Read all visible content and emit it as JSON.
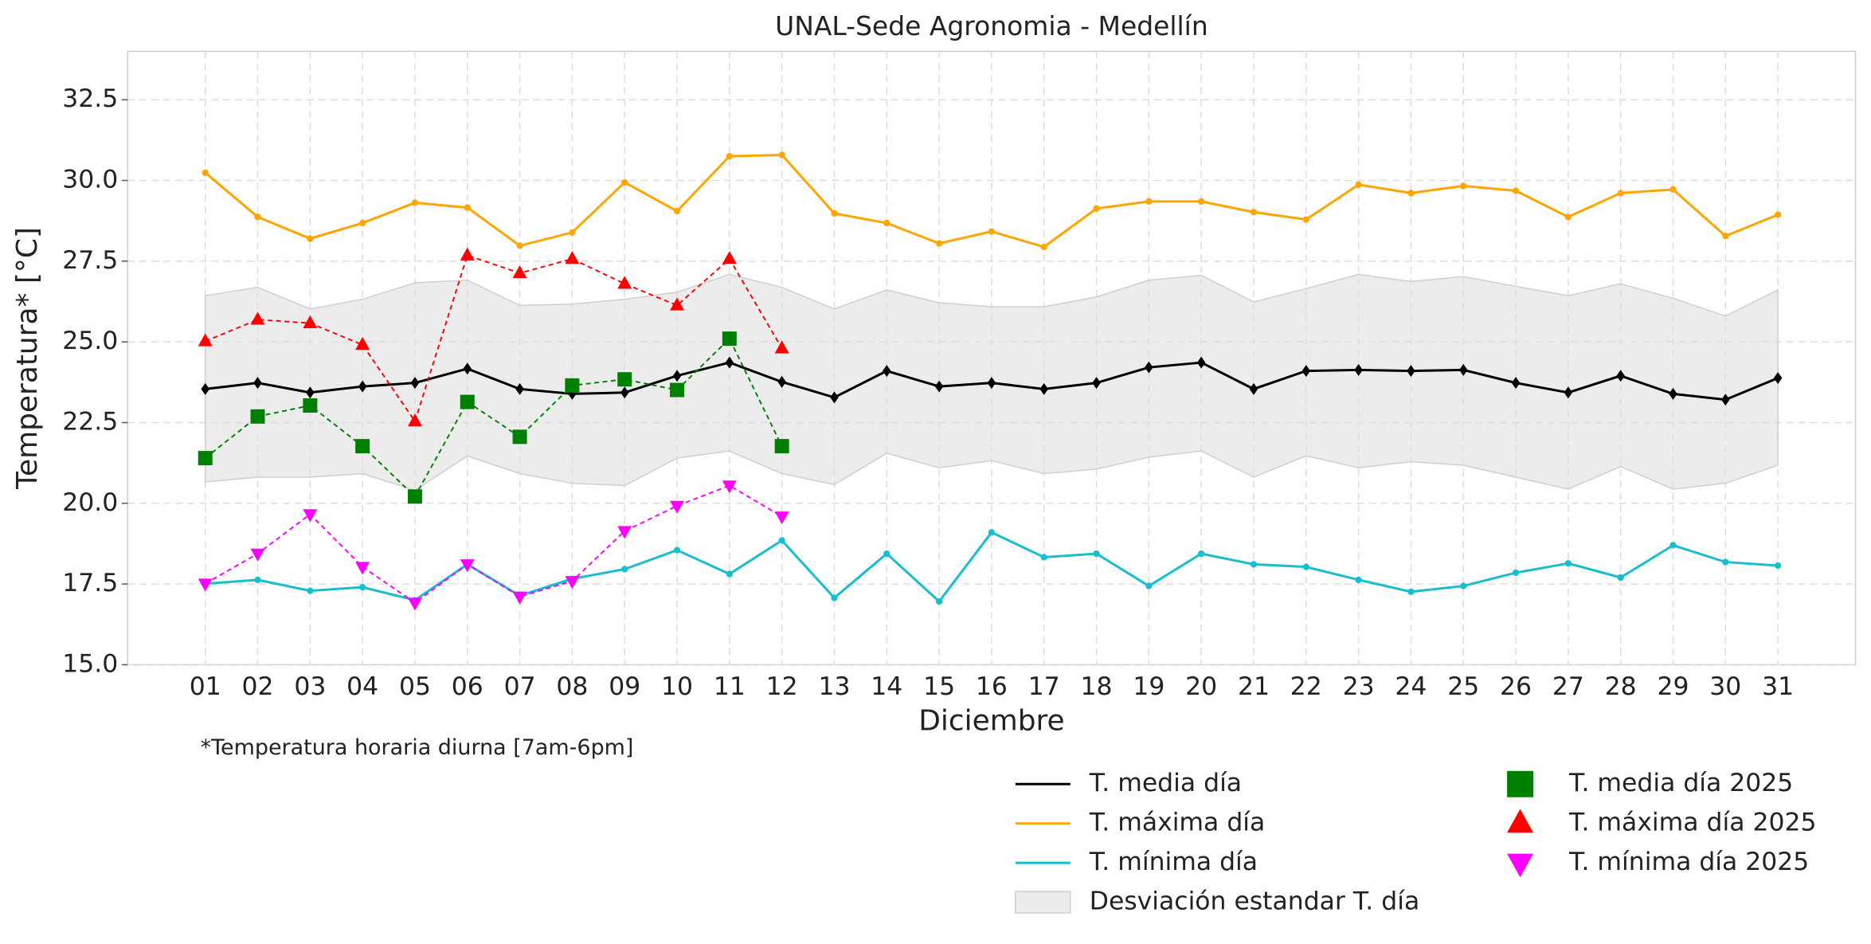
{
  "chart_data": {
    "type": "line",
    "title": "UNAL-Sede Agronomia - Medellín",
    "x_label": "Diciembre",
    "y_label": "Temperatura* [°C]",
    "note": "*Temperatura horaria diurna [7am-6pm]",
    "categories": [
      "01",
      "02",
      "03",
      "04",
      "05",
      "06",
      "07",
      "08",
      "09",
      "10",
      "11",
      "12",
      "13",
      "14",
      "15",
      "16",
      "17",
      "18",
      "19",
      "20",
      "21",
      "22",
      "23",
      "24",
      "25",
      "26",
      "27",
      "28",
      "29",
      "30",
      "31"
    ],
    "ylim": [
      15,
      34
    ],
    "yticks": [
      {
        "value": 15,
        "label": "15.0"
      },
      {
        "value": 17.5,
        "label": "17.5"
      },
      {
        "value": 20,
        "label": "20.0"
      },
      {
        "value": 22.5,
        "label": "22.5"
      },
      {
        "value": 25,
        "label": "25.0"
      },
      {
        "value": 27.5,
        "label": "27.5"
      },
      {
        "value": 30,
        "label": "30.0"
      },
      {
        "value": 32.5,
        "label": "32.5"
      }
    ],
    "grid": true,
    "band": {
      "name": "Desviación estandar T. día",
      "color": "#e0e0e0",
      "upper": [
        26.43,
        26.69,
        26.02,
        26.32,
        26.83,
        26.91,
        26.13,
        26.17,
        26.32,
        26.54,
        27.09,
        26.69,
        26.02,
        26.61,
        26.21,
        26.09,
        26.09,
        26.39,
        26.91,
        27.06,
        26.24,
        26.65,
        27.09,
        26.87,
        27.02,
        26.72,
        26.43,
        26.8,
        26.35,
        25.8,
        26.61
      ],
      "lower": [
        20.66,
        20.81,
        20.81,
        20.92,
        20.4,
        21.47,
        20.92,
        20.62,
        20.55,
        21.4,
        21.62,
        20.92,
        20.58,
        21.55,
        21.1,
        21.32,
        20.92,
        21.06,
        21.43,
        21.62,
        20.81,
        21.47,
        21.1,
        21.29,
        21.18,
        20.81,
        20.44,
        21.14,
        20.44,
        20.62,
        21.18
      ]
    },
    "series": [
      {
        "name": "T. media día",
        "color": "#000000",
        "marker": "diamond",
        "dashed": false,
        "values": [
          23.54,
          23.73,
          23.43,
          23.62,
          23.73,
          24.17,
          23.54,
          23.39,
          23.43,
          23.95,
          24.36,
          23.76,
          23.28,
          24.1,
          23.62,
          23.73,
          23.54,
          23.73,
          24.21,
          24.36,
          23.54,
          24.1,
          24.13,
          24.1,
          24.13,
          23.73,
          23.43,
          23.95,
          23.39,
          23.21,
          23.88
        ]
      },
      {
        "name": "T. máxima día",
        "color": "#ffa500",
        "marker": "circle",
        "dashed": false,
        "values": [
          30.24,
          28.87,
          28.2,
          28.68,
          29.31,
          29.16,
          27.98,
          28.39,
          29.94,
          29.05,
          30.75,
          30.79,
          28.98,
          28.68,
          28.05,
          28.42,
          27.94,
          29.13,
          29.35,
          29.35,
          29.02,
          28.79,
          29.87,
          29.61,
          29.83,
          29.68,
          28.87,
          29.61,
          29.72,
          28.28,
          28.94
        ]
      },
      {
        "name": "T. mínima día",
        "color": "#17becf",
        "marker": "circle",
        "dashed": false,
        "values": [
          17.51,
          17.63,
          17.29,
          17.4,
          17.0,
          18.11,
          17.14,
          17.66,
          17.96,
          18.55,
          17.81,
          18.85,
          17.07,
          18.44,
          16.96,
          19.1,
          18.33,
          18.44,
          17.44,
          18.44,
          18.11,
          18.03,
          17.63,
          17.26,
          17.44,
          17.85,
          18.14,
          17.7,
          18.7,
          18.18,
          18.07
        ]
      },
      {
        "name": "T. media día 2025",
        "color": "#008000",
        "marker": "square",
        "dashed": true,
        "values": [
          21.4,
          22.69,
          23.03,
          21.77,
          20.21,
          23.14,
          22.06,
          23.65,
          23.84,
          23.51,
          25.1,
          21.77,
          null,
          null,
          null,
          null,
          null,
          null,
          null,
          null,
          null,
          null,
          null,
          null,
          null,
          null,
          null,
          null,
          null,
          null,
          null
        ]
      },
      {
        "name": "T. máxima día 2025",
        "color": "#ff0000",
        "marker": "triangle-up",
        "dashed": true,
        "values": [
          25.02,
          25.69,
          25.58,
          24.91,
          22.54,
          27.68,
          27.13,
          27.57,
          26.8,
          26.13,
          27.57,
          24.8,
          null,
          null,
          null,
          null,
          null,
          null,
          null,
          null,
          null,
          null,
          null,
          null,
          null,
          null,
          null,
          null,
          null,
          null,
          null
        ]
      },
      {
        "name": "T. mínima día 2025",
        "color": "#ff00ff",
        "marker": "triangle-down",
        "dashed": true,
        "values": [
          17.51,
          18.44,
          19.66,
          18.03,
          16.92,
          18.11,
          17.11,
          17.59,
          19.14,
          19.92,
          20.55,
          19.59,
          null,
          null,
          null,
          null,
          null,
          null,
          null,
          null,
          null,
          null,
          null,
          null,
          null,
          null,
          null,
          null,
          null,
          null,
          null
        ]
      }
    ]
  }
}
